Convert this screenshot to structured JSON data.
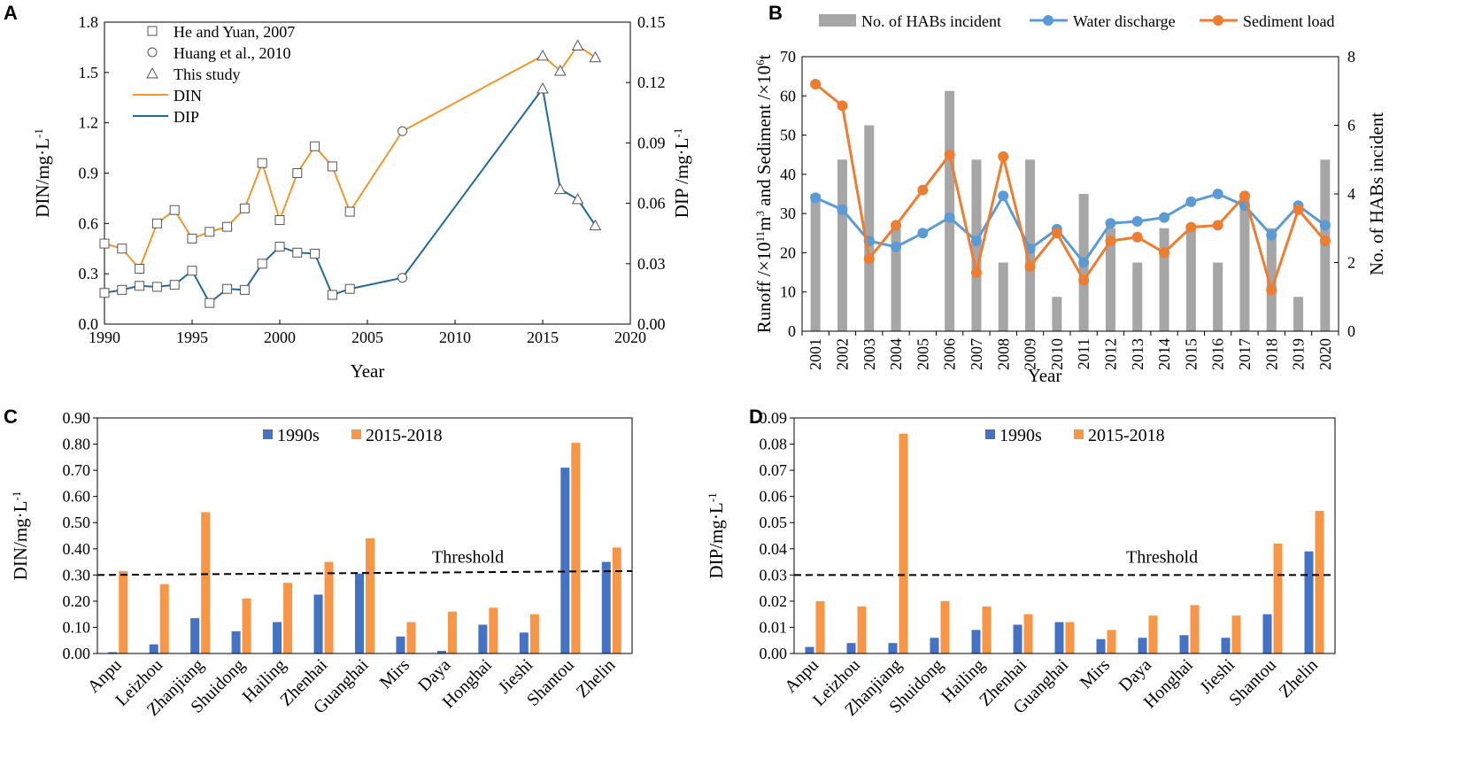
{
  "chart_data": [
    {
      "panel": "A",
      "type": "line",
      "xlabel": "Year",
      "ylabel_left": "DIN/mg·L",
      "ylabel_left_sup": "-1",
      "ylabel_right": "DIP /mg·L",
      "ylabel_right_sup": "-1",
      "xlim": [
        1990,
        2020
      ],
      "ylim_left": [
        0,
        1.8
      ],
      "ylim_right": [
        0,
        0.15
      ],
      "x_ticks": [
        "1990",
        "1995",
        "2000",
        "2005",
        "2010",
        "2015",
        "2020"
      ],
      "y_ticks_left": [
        "0.0",
        "0.3",
        "0.6",
        "0.9",
        "1.2",
        "1.5",
        "1.8"
      ],
      "y_ticks_right": [
        "0.00",
        "0.03",
        "0.06",
        "0.09",
        "0.12",
        "0.15"
      ],
      "legend": [
        "He and Yuan, 2007",
        "Huang et al., 2010",
        "This study",
        "DIN",
        "DIP"
      ],
      "colors": {
        "DIN": "#f0962a",
        "DIP": "#1f6aa0"
      },
      "series": [
        {
          "name": "DIN",
          "axis": "left",
          "points": [
            {
              "x": 1990,
              "y": 0.48,
              "source": "He and Yuan, 2007"
            },
            {
              "x": 1991,
              "y": 0.45,
              "source": "He and Yuan, 2007"
            },
            {
              "x": 1992,
              "y": 0.33,
              "source": "He and Yuan, 2007"
            },
            {
              "x": 1993,
              "y": 0.6,
              "source": "He and Yuan, 2007"
            },
            {
              "x": 1994,
              "y": 0.68,
              "source": "He and Yuan, 2007"
            },
            {
              "x": 1995,
              "y": 0.51,
              "source": "He and Yuan, 2007"
            },
            {
              "x": 1996,
              "y": 0.55,
              "source": "He and Yuan, 2007"
            },
            {
              "x": 1997,
              "y": 0.58,
              "source": "He and Yuan, 2007"
            },
            {
              "x": 1998,
              "y": 0.69,
              "source": "He and Yuan, 2007"
            },
            {
              "x": 1999,
              "y": 0.96,
              "source": "He and Yuan, 2007"
            },
            {
              "x": 2000,
              "y": 0.62,
              "source": "He and Yuan, 2007"
            },
            {
              "x": 2001,
              "y": 0.9,
              "source": "He and Yuan, 2007"
            },
            {
              "x": 2002,
              "y": 1.06,
              "source": "He and Yuan, 2007"
            },
            {
              "x": 2003,
              "y": 0.94,
              "source": "He and Yuan, 2007"
            },
            {
              "x": 2004,
              "y": 0.67,
              "source": "He and Yuan, 2007"
            },
            {
              "x": 2007,
              "y": 1.15,
              "source": "Huang et al., 2010"
            },
            {
              "x": 2015,
              "y": 1.6,
              "source": "This study"
            },
            {
              "x": 2016,
              "y": 1.51,
              "source": "This study"
            },
            {
              "x": 2017,
              "y": 1.66,
              "source": "This study"
            },
            {
              "x": 2018,
              "y": 1.59,
              "source": "This study"
            }
          ]
        },
        {
          "name": "DIP",
          "axis": "right",
          "points": [
            {
              "x": 1990,
              "y": 0.0155,
              "source": "He and Yuan, 2007"
            },
            {
              "x": 1991,
              "y": 0.017,
              "source": "He and Yuan, 2007"
            },
            {
              "x": 1992,
              "y": 0.019,
              "source": "He and Yuan, 2007"
            },
            {
              "x": 1993,
              "y": 0.0185,
              "source": "He and Yuan, 2007"
            },
            {
              "x": 1994,
              "y": 0.0195,
              "source": "He and Yuan, 2007"
            },
            {
              "x": 1995,
              "y": 0.0265,
              "source": "He and Yuan, 2007"
            },
            {
              "x": 1996,
              "y": 0.0105,
              "source": "He and Yuan, 2007"
            },
            {
              "x": 1997,
              "y": 0.0175,
              "source": "He and Yuan, 2007"
            },
            {
              "x": 1998,
              "y": 0.017,
              "source": "He and Yuan, 2007"
            },
            {
              "x": 1999,
              "y": 0.03,
              "source": "He and Yuan, 2007"
            },
            {
              "x": 2000,
              "y": 0.0385,
              "source": "He and Yuan, 2007"
            },
            {
              "x": 2001,
              "y": 0.0355,
              "source": "He and Yuan, 2007"
            },
            {
              "x": 2002,
              "y": 0.035,
              "source": "He and Yuan, 2007"
            },
            {
              "x": 2003,
              "y": 0.0145,
              "source": "He and Yuan, 2007"
            },
            {
              "x": 2004,
              "y": 0.0175,
              "source": "He and Yuan, 2007"
            },
            {
              "x": 2007,
              "y": 0.023,
              "source": "Huang et al., 2010"
            },
            {
              "x": 2015,
              "y": 0.117,
              "source": "This study"
            },
            {
              "x": 2016,
              "y": 0.067,
              "source": "This study"
            },
            {
              "x": 2017,
              "y": 0.062,
              "source": "This study"
            },
            {
              "x": 2018,
              "y": 0.049,
              "source": "This study"
            }
          ]
        }
      ]
    },
    {
      "panel": "B",
      "type": "bar+line",
      "xlabel": "Year",
      "ylabel_left_parts": [
        "Runoff /×10",
        "11",
        "m",
        "3",
        " and Sediment /×10",
        "6",
        "t"
      ],
      "ylabel_right": "No. of HABs incident",
      "categories": [
        "2001",
        "2002",
        "2003",
        "2004",
        "2005",
        "2006",
        "2007",
        "2008",
        "2009",
        "2010",
        "2011",
        "2012",
        "2013",
        "2014",
        "2015",
        "2016",
        "2017",
        "2018",
        "2019",
        "2020"
      ],
      "ylim_left": [
        0,
        70
      ],
      "ylim_right": [
        0,
        8
      ],
      "y_ticks_left": [
        "0",
        "10",
        "20",
        "30",
        "40",
        "50",
        "60",
        "70"
      ],
      "y_ticks_right": [
        "0",
        "2",
        "4",
        "6",
        "8"
      ],
      "legend": [
        "No. of HABs incident",
        "Water discharge",
        "Sediment load"
      ],
      "colors": {
        "bars": "#a6a6a6",
        "water": "#5b9bd5",
        "sediment": "#ed7d31"
      },
      "series": [
        {
          "name": "No. of HABs incident",
          "axis": "right",
          "values": [
            4,
            5,
            6,
            3,
            0,
            7,
            5,
            2,
            5,
            1,
            4,
            3,
            2,
            3,
            3,
            2,
            4,
            3,
            1,
            5
          ]
        },
        {
          "name": "Water discharge",
          "axis": "left",
          "values": [
            34,
            31,
            23,
            21.5,
            25,
            29,
            23,
            34.5,
            21,
            26,
            17.5,
            27.5,
            28,
            29,
            33,
            35,
            32,
            24.5,
            32,
            27
          ]
        },
        {
          "name": "Sediment load",
          "axis": "left",
          "values": [
            63,
            57.5,
            18.5,
            27,
            36,
            45,
            15,
            44.5,
            16.5,
            25,
            13,
            23,
            24,
            20,
            26.5,
            27,
            34.5,
            10.5,
            31,
            23
          ]
        }
      ]
    },
    {
      "panel": "C",
      "type": "bar",
      "ylabel": "DIN/mg·L",
      "ylabel_sup": "-1",
      "categories": [
        "Anpu",
        "Leizhou",
        "Zhanjiang",
        "Shuidong",
        "Hailing",
        "Zhenhai",
        "Guanghai",
        "Mirs",
        "Daya",
        "Honghai",
        "Jieshi",
        "Shantou",
        "Zhelin"
      ],
      "ylim": [
        0,
        0.9
      ],
      "y_ticks": [
        "0.00",
        "0.10",
        "0.20",
        "0.30",
        "0.40",
        "0.50",
        "0.60",
        "0.70",
        "0.80",
        "0.90"
      ],
      "threshold": 0.3,
      "threshold_end": 0.315,
      "threshold_label": "Threshold",
      "legend": [
        "1990s",
        "2015-2018"
      ],
      "colors": {
        "1990s": "#4472c4",
        "2015-2018": "#f79646"
      },
      "series": [
        {
          "name": "1990s",
          "values": [
            0.005,
            0.035,
            0.135,
            0.085,
            0.12,
            0.225,
            0.305,
            0.065,
            0.01,
            0.11,
            0.08,
            0.71,
            0.35
          ]
        },
        {
          "name": "2015-2018",
          "values": [
            0.315,
            0.265,
            0.54,
            0.21,
            0.27,
            0.35,
            0.44,
            0.12,
            0.16,
            0.175,
            0.15,
            0.805,
            0.405
          ]
        }
      ]
    },
    {
      "panel": "D",
      "type": "bar",
      "ylabel": "DIP/mg·L",
      "ylabel_sup": "-1",
      "categories": [
        "Anpu",
        "Leizhou",
        "Zhanjiang",
        "Shuidong",
        "Hailing",
        "Zhenhai",
        "Guanghai",
        "Mirs",
        "Daya",
        "Honghai",
        "Jieshi",
        "Shantou",
        "Zhelin"
      ],
      "ylim": [
        0,
        0.09
      ],
      "y_ticks": [
        "0.00",
        "0.01",
        "0.02",
        "0.03",
        "0.04",
        "0.05",
        "0.06",
        "0.07",
        "0.08",
        "0.09"
      ],
      "threshold": 0.03,
      "threshold_end": 0.03,
      "threshold_label": "Threshold",
      "legend": [
        "1990s",
        "2015-2018"
      ],
      "colors": {
        "1990s": "#4472c4",
        "2015-2018": "#f79646"
      },
      "series": [
        {
          "name": "1990s",
          "values": [
            0.0025,
            0.004,
            0.004,
            0.006,
            0.009,
            0.011,
            0.012,
            0.0055,
            0.006,
            0.007,
            0.006,
            0.015,
            0.039
          ]
        },
        {
          "name": "2015-2018",
          "values": [
            0.02,
            0.018,
            0.084,
            0.02,
            0.018,
            0.015,
            0.012,
            0.009,
            0.0145,
            0.0185,
            0.0145,
            0.042,
            0.0545
          ]
        }
      ]
    }
  ],
  "panel_labels": [
    "A",
    "B",
    "C",
    "D"
  ]
}
